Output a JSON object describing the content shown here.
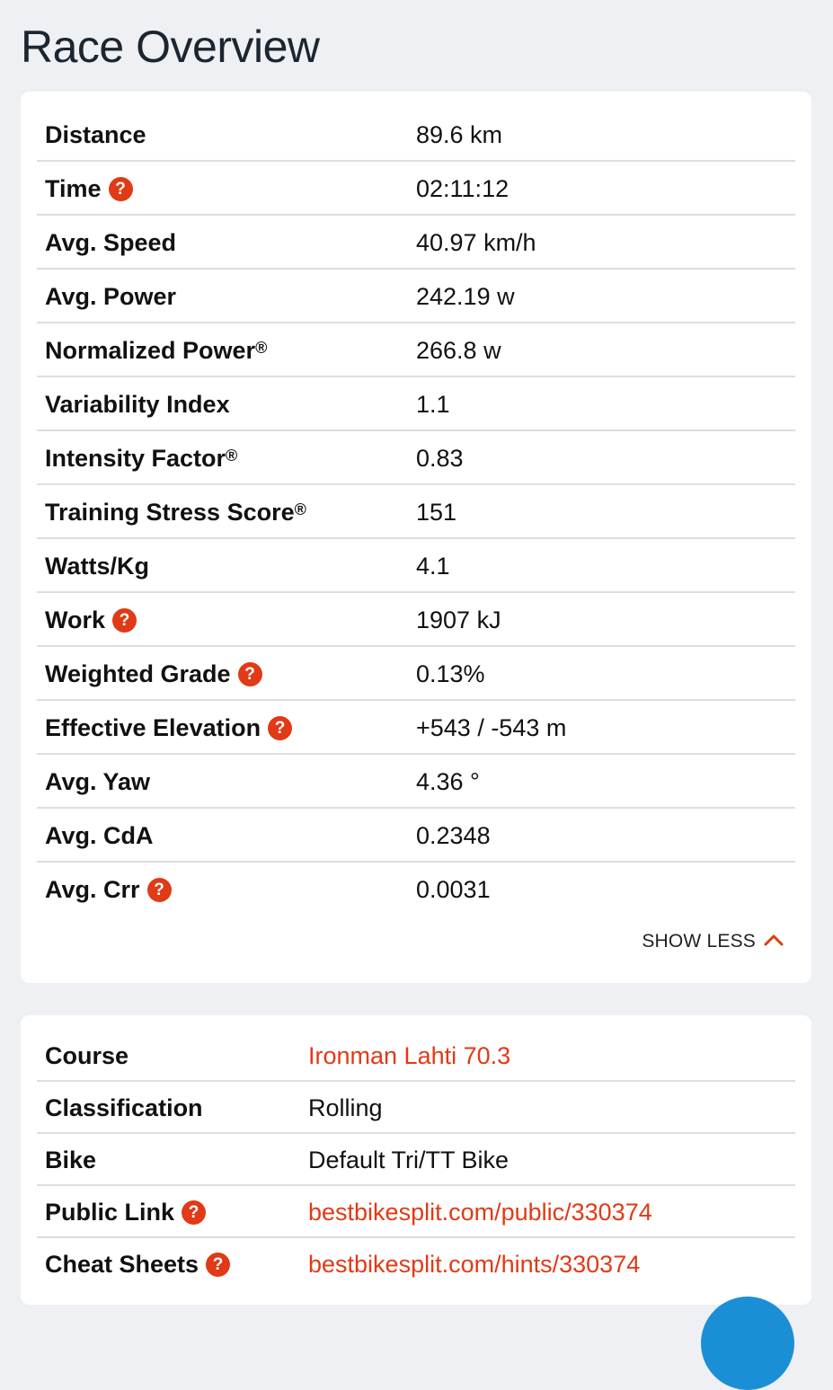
{
  "page_title": "Race Overview",
  "overview_rows": [
    {
      "label": "Distance",
      "value": "89.6 km",
      "help": false,
      "reg": false
    },
    {
      "label": "Time",
      "value": "02:11:12",
      "help": true,
      "reg": false
    },
    {
      "label": "Avg. Speed",
      "value": "40.97 km/h",
      "help": false,
      "reg": false
    },
    {
      "label": "Avg. Power",
      "value": "242.19 w",
      "help": false,
      "reg": false
    },
    {
      "label": "Normalized Power",
      "value": "266.8 w",
      "help": false,
      "reg": true
    },
    {
      "label": "Variability Index",
      "value": "1.1",
      "help": false,
      "reg": false
    },
    {
      "label": "Intensity Factor",
      "value": "0.83",
      "help": false,
      "reg": true
    },
    {
      "label": "Training Stress Score",
      "value": "151",
      "help": false,
      "reg": true
    },
    {
      "label": "Watts/Kg",
      "value": "4.1",
      "help": false,
      "reg": false
    },
    {
      "label": "Work",
      "value": "1907 kJ",
      "help": true,
      "reg": false
    },
    {
      "label": "Weighted Grade",
      "value": "0.13%",
      "help": true,
      "reg": false
    },
    {
      "label": "Effective Elevation",
      "value": "+543 / -543 m",
      "help": true,
      "reg": false
    },
    {
      "label": "Avg. Yaw",
      "value": "4.36 °",
      "help": false,
      "reg": false
    },
    {
      "label": "Avg. CdA",
      "value": "0.2348",
      "help": false,
      "reg": false
    },
    {
      "label": "Avg. Crr",
      "value": "0.0031",
      "help": true,
      "reg": false
    }
  ],
  "show_less_label": "SHOW LESS",
  "registered_mark": "®",
  "help_glyph": "?",
  "details_rows": [
    {
      "label": "Course",
      "value": "Ironman Lahti 70.3",
      "help": false,
      "link": true
    },
    {
      "label": "Classification",
      "value": "Rolling",
      "help": false,
      "link": false
    },
    {
      "label": "Bike",
      "value": "Default Tri/TT Bike",
      "help": false,
      "link": false
    },
    {
      "label": "Public Link",
      "value": "bestbikesplit.com/public/330374",
      "help": true,
      "link": true
    },
    {
      "label": "Cheat Sheets",
      "value": "bestbikesplit.com/hints/330374",
      "help": true,
      "link": true
    }
  ],
  "colors": {
    "accent": "#e03a16",
    "background": "#eef0f3",
    "card": "#ffffff",
    "divider": "#dedede",
    "fab": "#1b8fd6"
  }
}
